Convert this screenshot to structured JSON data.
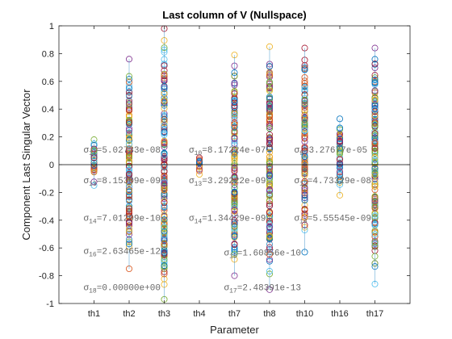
{
  "chart_data": {
    "type": "scatter",
    "title": "Last column of V (Nullspace)",
    "xlabel": "Parameter",
    "ylabel": "Component Last Singular Vector",
    "ylim": [
      -1,
      1
    ],
    "yticks": [
      "-1",
      "-0.8",
      "-0.6",
      "-0.4",
      "-0.2",
      "0",
      "0.2",
      "0.4",
      "0.6",
      "0.8",
      "1"
    ],
    "ytick_values": [
      -1,
      -0.8,
      -0.6,
      -0.4,
      -0.2,
      0,
      0.2,
      0.4,
      0.6,
      0.8,
      1
    ],
    "categories": [
      "th1",
      "th2",
      "th3",
      "th4",
      "th7",
      "th8",
      "th10",
      "th16",
      "th17"
    ],
    "grid": false,
    "zero_line": true,
    "marker": "open-circle",
    "palette": [
      "#0072BD",
      "#D95319",
      "#EDB120",
      "#7E2F8E",
      "#77AC30",
      "#4DBEEE",
      "#A2142F"
    ],
    "columns": [
      {
        "category": "th1",
        "min": -0.15,
        "max": 0.18
      },
      {
        "category": "th2",
        "min": -0.75,
        "max": 0.76
      },
      {
        "category": "th3",
        "min": -0.97,
        "max": 0.98
      },
      {
        "category": "th4",
        "min": -0.07,
        "max": 0.05
      },
      {
        "category": "th7",
        "min": -0.8,
        "max": 0.79
      },
      {
        "category": "th8",
        "min": -0.9,
        "max": 0.85
      },
      {
        "category": "th10",
        "min": -0.63,
        "max": 0.84
      },
      {
        "category": "th16",
        "min": -0.22,
        "max": 0.33
      },
      {
        "category": "th17",
        "min": -0.86,
        "max": 0.84
      }
    ],
    "annotations": [
      {
        "sub": "11",
        "text": "=5.02733e-08",
        "x": "th1",
        "y": 0.11
      },
      {
        "sub": "13",
        "text": "=8.15309e-09",
        "x": "th1",
        "y": -0.11
      },
      {
        "sub": "14",
        "text": "=7.01299e-10",
        "x": "th1",
        "y": -0.38
      },
      {
        "sub": "16",
        "text": "=2.63465e-12",
        "x": "th1",
        "y": -0.62
      },
      {
        "sub": "18",
        "text": "=0.00000e+00",
        "x": "th1",
        "y": -0.88
      },
      {
        "sub": "10",
        "text": "=8.17224e-07",
        "x": "th4",
        "y": 0.11
      },
      {
        "sub": "13",
        "text": "=3.29222e-09",
        "x": "th4",
        "y": -0.11
      },
      {
        "sub": "14",
        "text": "=1.34429e-09",
        "x": "th4",
        "y": -0.38
      },
      {
        "sub": "15",
        "text": "=1.60856e-10",
        "x": "th7",
        "y": -0.63
      },
      {
        "sub": "17",
        "text": "=2.48391e-13",
        "x": "th7",
        "y": -0.88
      },
      {
        "sub": "9",
        "text": "=3.27677e-05",
        "x": "th10",
        "y": 0.11
      },
      {
        "sub": "12",
        "text": "=4.73329e-08",
        "x": "th10",
        "y": -0.11
      },
      {
        "sub": "14",
        "text": "=5.55545e-09",
        "x": "th10",
        "y": -0.38
      }
    ]
  }
}
